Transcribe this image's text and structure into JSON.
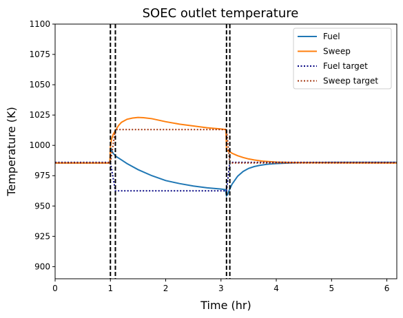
{
  "chart_data": {
    "type": "line",
    "title": "SOEC outlet temperature",
    "xlabel": "Time (hr)",
    "ylabel": "Temperature (K)",
    "xlim": [
      0,
      6.18
    ],
    "ylim": [
      890,
      1100
    ],
    "xticks": [
      0,
      1,
      2,
      3,
      4,
      5,
      6
    ],
    "yticks": [
      900,
      925,
      950,
      975,
      1000,
      1025,
      1050,
      1075,
      1100
    ],
    "grid": false,
    "legend_position": "top-right",
    "vertical_lines": [
      1.0,
      1.09,
      3.1,
      3.16
    ],
    "series": [
      {
        "name": "Fuel",
        "style": "solid",
        "color": "#1f77b4",
        "x": [
          0,
          0.99,
          1.0,
          1.01,
          1.02,
          1.05,
          1.1,
          1.2,
          1.3,
          1.5,
          1.75,
          2.0,
          2.25,
          2.5,
          2.75,
          3.0,
          3.08,
          3.09,
          3.1,
          3.12,
          3.14,
          3.2,
          3.3,
          3.4,
          3.5,
          3.6,
          3.7,
          3.85,
          4.0,
          4.25,
          4.5,
          5.0,
          6.18
        ],
        "y": [
          985.5,
          985.5,
          995,
          998,
          996,
          993.5,
          991,
          988,
          985,
          980,
          975,
          971,
          968.5,
          966.5,
          965,
          964,
          963.5,
          961,
          958.5,
          959.5,
          962,
          968,
          974.5,
          978.5,
          981,
          982.5,
          983.5,
          984.5,
          985,
          985.5,
          985.8,
          986,
          986
        ]
      },
      {
        "name": "Sweep",
        "style": "solid",
        "color": "#ff7f0e",
        "x": [
          0,
          0.99,
          1.0,
          1.02,
          1.05,
          1.1,
          1.15,
          1.2,
          1.3,
          1.4,
          1.5,
          1.6,
          1.75,
          2.0,
          2.25,
          2.5,
          2.75,
          3.0,
          3.09,
          3.1,
          3.12,
          3.15,
          3.2,
          3.3,
          3.4,
          3.5,
          3.6,
          3.75,
          4.0,
          4.25,
          4.5,
          5.0,
          6.18
        ],
        "y": [
          985.5,
          985.5,
          999,
          1005,
          1009,
          1013,
          1016.5,
          1019,
          1021.5,
          1022.5,
          1023,
          1022.8,
          1022,
          1019.5,
          1017.5,
          1016,
          1014.5,
          1013.5,
          1013,
          996,
          995.5,
          995,
          993.5,
          991.5,
          990,
          988.8,
          988,
          987,
          986.2,
          985.9,
          985.7,
          985.6,
          985.5
        ]
      },
      {
        "name": "Fuel target",
        "style": "dotted",
        "color": "#000080",
        "x": [
          0,
          1.0,
          1.09,
          3.1,
          3.16,
          6.18
        ],
        "y": [
          986,
          986,
          962.5,
          962.5,
          986,
          986
        ]
      },
      {
        "name": "Sweep target",
        "style": "dotted",
        "color": "#a0300a",
        "x": [
          0,
          1.0,
          1.09,
          3.1,
          3.16,
          6.18
        ],
        "y": [
          985.5,
          985.5,
          1013,
          1013,
          985.5,
          985.5
        ]
      }
    ]
  }
}
